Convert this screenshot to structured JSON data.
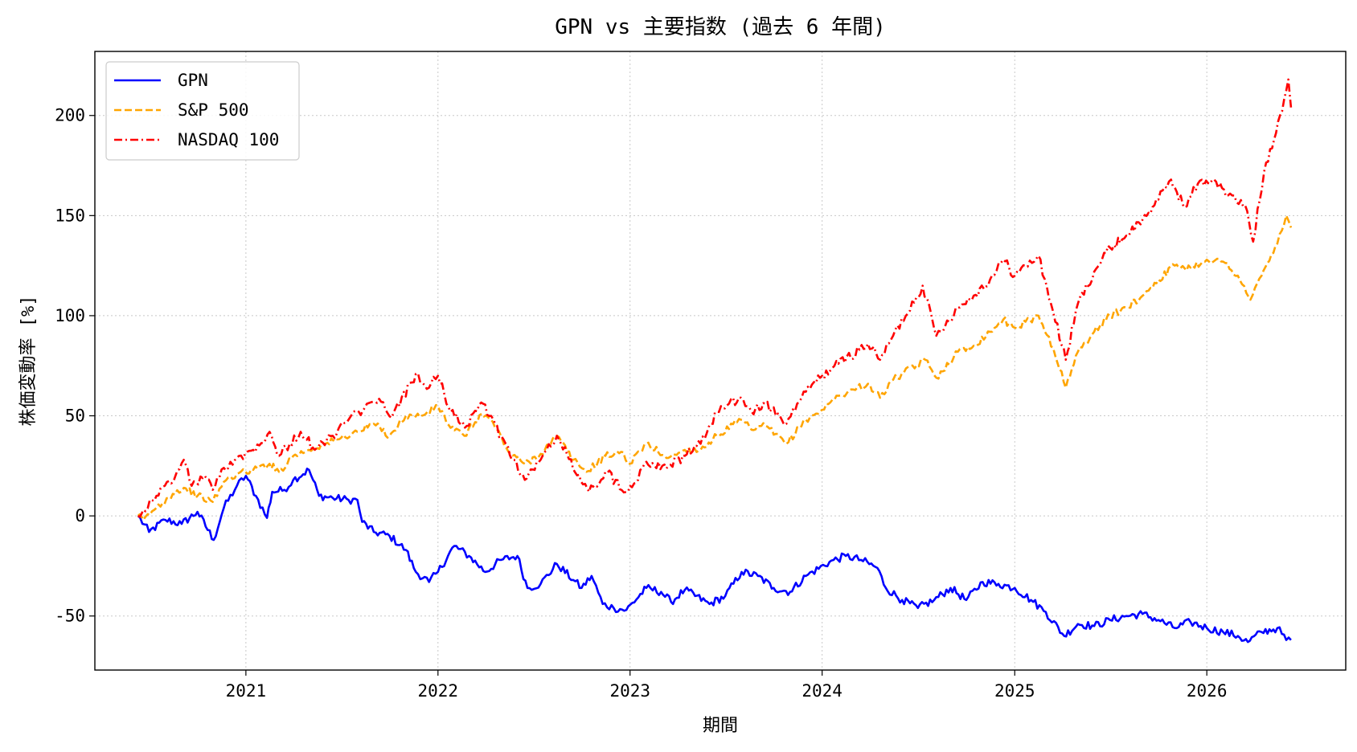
{
  "chart_data": {
    "type": "line",
    "title": "GPN vs 主要指数 (過去 6 年間)",
    "xlabel": "期間",
    "ylabel": "株価変動率 [%]",
    "x_ticks": [
      "2021",
      "2022",
      "2023",
      "2024",
      "2025",
      "2026"
    ],
    "y_ticks": [
      -50,
      0,
      50,
      100,
      150,
      200
    ],
    "xlim": [
      "2020-03-20",
      "2026-09-22"
    ],
    "ylim": [
      -77,
      232
    ],
    "grid": true,
    "legend_position": "top-left",
    "series": [
      {
        "name": "GPN",
        "color": "#0000ff",
        "dash": "solid",
        "points": [
          [
            "2020-06-10",
            0
          ],
          [
            "2020-07-01",
            -8
          ],
          [
            "2020-08-01",
            -2
          ],
          [
            "2020-09-01",
            -4
          ],
          [
            "2020-10-01",
            2
          ],
          [
            "2020-11-01",
            -12
          ],
          [
            "2020-11-20",
            4
          ],
          [
            "2020-12-15",
            15
          ],
          [
            "2021-01-01",
            20
          ],
          [
            "2021-01-20",
            10
          ],
          [
            "2021-02-10",
            -1
          ],
          [
            "2021-02-20",
            12
          ],
          [
            "2021-03-15",
            13
          ],
          [
            "2021-04-01",
            18
          ],
          [
            "2021-05-01",
            23
          ],
          [
            "2021-05-20",
            10
          ],
          [
            "2021-06-15",
            9
          ],
          [
            "2021-07-15",
            8
          ],
          [
            "2021-08-01",
            8
          ],
          [
            "2021-08-10",
            -3
          ],
          [
            "2021-09-01",
            -8
          ],
          [
            "2021-10-01",
            -10
          ],
          [
            "2021-11-01",
            -17
          ],
          [
            "2021-11-20",
            -28
          ],
          [
            "2021-12-15",
            -33
          ],
          [
            "2022-01-01",
            -28
          ],
          [
            "2022-02-01",
            -15
          ],
          [
            "2022-03-01",
            -20
          ],
          [
            "2022-04-01",
            -28
          ],
          [
            "2022-05-01",
            -22
          ],
          [
            "2022-06-01",
            -20
          ],
          [
            "2022-06-20",
            -36
          ],
          [
            "2022-07-15",
            -34
          ],
          [
            "2022-08-15",
            -24
          ],
          [
            "2022-09-15",
            -32
          ],
          [
            "2022-10-01",
            -36
          ],
          [
            "2022-10-20",
            -30
          ],
          [
            "2022-11-10",
            -44
          ],
          [
            "2022-12-01",
            -46
          ],
          [
            "2022-12-25",
            -47
          ],
          [
            "2023-02-01",
            -36
          ],
          [
            "2023-03-01",
            -38
          ],
          [
            "2023-03-20",
            -43
          ],
          [
            "2023-04-15",
            -37
          ],
          [
            "2023-06-01",
            -44
          ],
          [
            "2023-07-01",
            -40
          ],
          [
            "2023-08-01",
            -28
          ],
          [
            "2023-09-01",
            -30
          ],
          [
            "2023-10-01",
            -36
          ],
          [
            "2023-11-01",
            -38
          ],
          [
            "2023-12-01",
            -30
          ],
          [
            "2024-01-15",
            -23
          ],
          [
            "2024-02-15",
            -20
          ],
          [
            "2024-03-15",
            -22
          ],
          [
            "2024-04-15",
            -26
          ],
          [
            "2024-05-01",
            -36
          ],
          [
            "2024-06-01",
            -42
          ],
          [
            "2024-07-01",
            -46
          ],
          [
            "2024-08-01",
            -42
          ],
          [
            "2024-09-01",
            -36
          ],
          [
            "2024-10-01",
            -42
          ],
          [
            "2024-11-01",
            -33
          ],
          [
            "2024-12-01",
            -34
          ],
          [
            "2025-01-01",
            -36
          ],
          [
            "2025-02-01",
            -42
          ],
          [
            "2025-03-01",
            -48
          ],
          [
            "2025-04-05",
            -60
          ],
          [
            "2025-05-01",
            -54
          ],
          [
            "2025-06-01",
            -55
          ],
          [
            "2025-07-01",
            -52
          ],
          [
            "2025-08-01",
            -50
          ],
          [
            "2025-09-01",
            -49
          ],
          [
            "2025-10-01",
            -52
          ],
          [
            "2025-11-01",
            -56
          ],
          [
            "2025-12-01",
            -53
          ],
          [
            "2026-01-01",
            -56
          ],
          [
            "2026-02-01",
            -58
          ],
          [
            "2026-03-01",
            -60
          ],
          [
            "2026-03-20",
            -63
          ],
          [
            "2026-04-15",
            -58
          ],
          [
            "2026-05-15",
            -56
          ],
          [
            "2026-06-01",
            -62
          ],
          [
            "2026-06-10",
            -62
          ]
        ]
      },
      {
        "name": "S&P 500",
        "color": "#ffa500",
        "dash": "dashed",
        "points": [
          [
            "2020-06-10",
            0
          ],
          [
            "2020-06-20",
            -2
          ],
          [
            "2020-07-15",
            4
          ],
          [
            "2020-08-15",
            11
          ],
          [
            "2020-09-05",
            14
          ],
          [
            "2020-10-01",
            10
          ],
          [
            "2020-10-30",
            7
          ],
          [
            "2020-11-20",
            17
          ],
          [
            "2020-12-15",
            21
          ],
          [
            "2021-01-15",
            23
          ],
          [
            "2021-02-15",
            26
          ],
          [
            "2021-03-05",
            22
          ],
          [
            "2021-04-01",
            30
          ],
          [
            "2021-05-01",
            33
          ],
          [
            "2021-06-01",
            36
          ],
          [
            "2021-07-01",
            39
          ],
          [
            "2021-08-01",
            42
          ],
          [
            "2021-09-01",
            46
          ],
          [
            "2021-10-01",
            40
          ],
          [
            "2021-11-01",
            50
          ],
          [
            "2021-12-01",
            50
          ],
          [
            "2022-01-01",
            55
          ],
          [
            "2022-01-25",
            44
          ],
          [
            "2022-02-20",
            40
          ],
          [
            "2022-03-25",
            51
          ],
          [
            "2022-04-15",
            47
          ],
          [
            "2022-05-15",
            32
          ],
          [
            "2022-06-15",
            26
          ],
          [
            "2022-07-15",
            31
          ],
          [
            "2022-08-15",
            40
          ],
          [
            "2022-09-15",
            28
          ],
          [
            "2022-10-10",
            22
          ],
          [
            "2022-11-15",
            30
          ],
          [
            "2022-12-15",
            32
          ],
          [
            "2023-01-01",
            26
          ],
          [
            "2023-02-01",
            36
          ],
          [
            "2023-03-15",
            29
          ],
          [
            "2023-04-15",
            33
          ],
          [
            "2023-05-15",
            33
          ],
          [
            "2023-06-15",
            40
          ],
          [
            "2023-07-31",
            48
          ],
          [
            "2023-08-20",
            43
          ],
          [
            "2023-09-15",
            45
          ],
          [
            "2023-10-25",
            36
          ],
          [
            "2023-12-01",
            48
          ],
          [
            "2024-01-01",
            53
          ],
          [
            "2024-02-01",
            60
          ],
          [
            "2024-03-28",
            66
          ],
          [
            "2024-04-20",
            59
          ],
          [
            "2024-05-15",
            68
          ],
          [
            "2024-07-15",
            78
          ],
          [
            "2024-08-05",
            69
          ],
          [
            "2024-09-15",
            82
          ],
          [
            "2024-10-15",
            85
          ],
          [
            "2024-11-15",
            92
          ],
          [
            "2024-12-10",
            98
          ],
          [
            "2025-01-01",
            94
          ],
          [
            "2025-02-15",
            100
          ],
          [
            "2025-03-15",
            84
          ],
          [
            "2025-04-08",
            64
          ],
          [
            "2025-05-01",
            82
          ],
          [
            "2025-06-01",
            92
          ],
          [
            "2025-07-01",
            100
          ],
          [
            "2025-08-01",
            104
          ],
          [
            "2025-09-01",
            110
          ],
          [
            "2025-10-01",
            118
          ],
          [
            "2025-11-01",
            125
          ],
          [
            "2025-12-01",
            124
          ],
          [
            "2026-01-01",
            128
          ],
          [
            "2026-02-01",
            127
          ],
          [
            "2026-03-01",
            120
          ],
          [
            "2026-03-25",
            108
          ],
          [
            "2026-04-15",
            120
          ],
          [
            "2026-05-15",
            136
          ],
          [
            "2026-06-01",
            150
          ],
          [
            "2026-06-10",
            144
          ]
        ]
      },
      {
        "name": "NASDAQ 100",
        "color": "#ff0000",
        "dash": "dashdot",
        "points": [
          [
            "2020-06-10",
            0
          ],
          [
            "2020-06-20",
            3
          ],
          [
            "2020-07-15",
            10
          ],
          [
            "2020-08-20",
            20
          ],
          [
            "2020-09-05",
            28
          ],
          [
            "2020-09-20",
            15
          ],
          [
            "2020-10-15",
            20
          ],
          [
            "2020-10-30",
            13
          ],
          [
            "2020-11-20",
            24
          ],
          [
            "2020-12-15",
            29
          ],
          [
            "2021-01-15",
            33
          ],
          [
            "2021-02-15",
            42
          ],
          [
            "2021-03-05",
            30
          ],
          [
            "2021-04-15",
            42
          ],
          [
            "2021-05-12",
            33
          ],
          [
            "2021-06-15",
            40
          ],
          [
            "2021-07-15",
            48
          ],
          [
            "2021-08-15",
            54
          ],
          [
            "2021-09-15",
            57
          ],
          [
            "2021-10-05",
            49
          ],
          [
            "2021-11-20",
            71
          ],
          [
            "2021-12-15",
            64
          ],
          [
            "2022-01-01",
            70
          ],
          [
            "2022-01-25",
            52
          ],
          [
            "2022-02-25",
            45
          ],
          [
            "2022-03-28",
            56
          ],
          [
            "2022-05-01",
            40
          ],
          [
            "2022-06-15",
            18
          ],
          [
            "2022-07-15",
            28
          ],
          [
            "2022-08-15",
            40
          ],
          [
            "2022-09-30",
            17
          ],
          [
            "2022-10-15",
            12
          ],
          [
            "2022-11-15",
            22
          ],
          [
            "2022-12-28",
            12
          ],
          [
            "2023-02-01",
            27
          ],
          [
            "2023-03-15",
            25
          ],
          [
            "2023-04-15",
            30
          ],
          [
            "2023-05-15",
            36
          ],
          [
            "2023-06-15",
            52
          ],
          [
            "2023-07-31",
            59
          ],
          [
            "2023-08-20",
            52
          ],
          [
            "2023-09-15",
            56
          ],
          [
            "2023-10-25",
            46
          ],
          [
            "2023-12-01",
            62
          ],
          [
            "2024-01-01",
            70
          ],
          [
            "2024-02-01",
            76
          ],
          [
            "2024-03-28",
            86
          ],
          [
            "2024-04-20",
            78
          ],
          [
            "2024-05-15",
            90
          ],
          [
            "2024-07-10",
            115
          ],
          [
            "2024-08-05",
            90
          ],
          [
            "2024-09-15",
            104
          ],
          [
            "2024-10-15",
            110
          ],
          [
            "2024-11-15",
            118
          ],
          [
            "2024-12-10",
            128
          ],
          [
            "2025-01-01",
            120
          ],
          [
            "2025-02-15",
            130
          ],
          [
            "2025-03-15",
            102
          ],
          [
            "2025-04-08",
            78
          ],
          [
            "2025-05-01",
            106
          ],
          [
            "2025-06-01",
            122
          ],
          [
            "2025-07-01",
            134
          ],
          [
            "2025-08-01",
            140
          ],
          [
            "2025-09-01",
            148
          ],
          [
            "2025-10-01",
            158
          ],
          [
            "2025-10-25",
            168
          ],
          [
            "2025-11-20",
            154
          ],
          [
            "2025-12-15",
            166
          ],
          [
            "2026-01-15",
            168
          ],
          [
            "2026-02-10",
            160
          ],
          [
            "2026-03-15",
            155
          ],
          [
            "2026-03-30",
            137
          ],
          [
            "2026-04-20",
            172
          ],
          [
            "2026-05-20",
            200
          ],
          [
            "2026-06-05",
            218
          ],
          [
            "2026-06-10",
            204
          ]
        ]
      }
    ]
  }
}
